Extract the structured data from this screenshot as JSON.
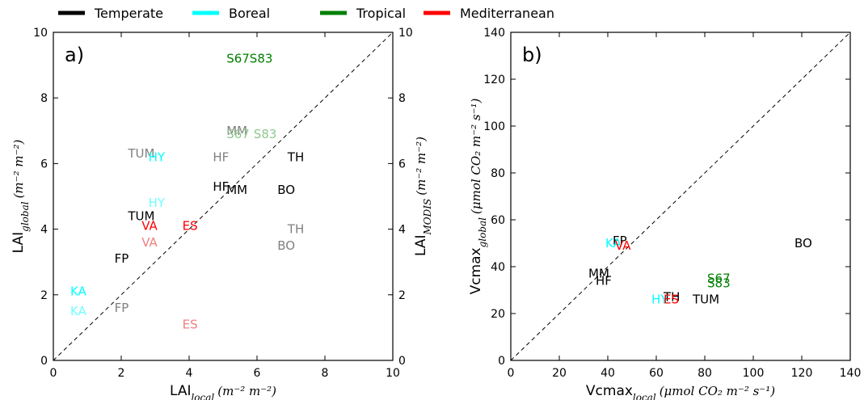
{
  "legend": [
    {
      "label": "Temperate",
      "color": "#000000"
    },
    {
      "label": "Boreal",
      "color": "#00ffff"
    },
    {
      "label": "Tropical",
      "color": "#008000"
    },
    {
      "label": "Mediterranean",
      "color": "#ff0000"
    }
  ],
  "chart_data": [
    {
      "type": "scatter",
      "panel_label": "a)",
      "xlabel": {
        "main": "LAI",
        "sub": "local",
        "unit": "(m⁻² m⁻²)"
      },
      "ylabel": {
        "main": "LAI",
        "sub": "global",
        "unit": "(m⁻² m⁻²)"
      },
      "y2label": {
        "main": "LAI",
        "sub": "MODIS",
        "unit": "(m⁻² m⁻²)"
      },
      "xlim": [
        0,
        10
      ],
      "ylim": [
        0,
        10
      ],
      "y2lim": [
        0,
        10
      ],
      "xticks": [
        "0",
        "2",
        "4",
        "6",
        "8",
        "10"
      ],
      "yticks": [
        "0",
        "2",
        "4",
        "6",
        "8",
        "10"
      ],
      "y2ticks": [
        "0",
        "2",
        "4",
        "6",
        "8",
        "10"
      ],
      "one_to_one_line": true,
      "points": [
        {
          "label": "S67S83",
          "x": 5.1,
          "y": 9.2,
          "color": "#008000"
        },
        {
          "label": "MM",
          "x": 5.1,
          "y": 7.0,
          "color": "#808080"
        },
        {
          "label": "S67",
          "x": 5.1,
          "y": 6.9,
          "color": "#90c890"
        },
        {
          "label": "S83",
          "x": 5.9,
          "y": 6.9,
          "color": "#90c890"
        },
        {
          "label": "TUM",
          "x": 2.2,
          "y": 6.3,
          "color": "#808080"
        },
        {
          "label": "HY",
          "x": 2.8,
          "y": 6.2,
          "color": "#00ffff"
        },
        {
          "label": "HF",
          "x": 4.7,
          "y": 6.2,
          "color": "#808080"
        },
        {
          "label": "TH",
          "x": 6.9,
          "y": 6.2,
          "color": "#000000"
        },
        {
          "label": "HF",
          "x": 4.7,
          "y": 5.3,
          "color": "#000000"
        },
        {
          "label": "MM",
          "x": 5.1,
          "y": 5.2,
          "color": "#000000"
        },
        {
          "label": "BO",
          "x": 6.6,
          "y": 5.2,
          "color": "#000000"
        },
        {
          "label": "HY",
          "x": 2.8,
          "y": 4.8,
          "color": "#70ffff"
        },
        {
          "label": "TUM",
          "x": 2.2,
          "y": 4.4,
          "color": "#000000"
        },
        {
          "label": "VA",
          "x": 2.6,
          "y": 4.1,
          "color": "#ff0000"
        },
        {
          "label": "ES",
          "x": 3.8,
          "y": 4.1,
          "color": "#ff0000"
        },
        {
          "label": "TH",
          "x": 6.9,
          "y": 4.0,
          "color": "#808080"
        },
        {
          "label": "VA",
          "x": 2.6,
          "y": 3.6,
          "color": "#f08080"
        },
        {
          "label": "BO",
          "x": 6.6,
          "y": 3.5,
          "color": "#808080"
        },
        {
          "label": "FP",
          "x": 1.8,
          "y": 3.1,
          "color": "#000000"
        },
        {
          "label": "KA",
          "x": 0.5,
          "y": 2.1,
          "color": "#00ffff"
        },
        {
          "label": "FP",
          "x": 1.8,
          "y": 1.6,
          "color": "#808080"
        },
        {
          "label": "KA",
          "x": 0.5,
          "y": 1.5,
          "color": "#70ffff"
        },
        {
          "label": "ES",
          "x": 3.8,
          "y": 1.1,
          "color": "#f08080"
        }
      ]
    },
    {
      "type": "scatter",
      "panel_label": "b)",
      "xlabel": {
        "main": "Vcmax",
        "sub": "local",
        "unit": "(μmol CO₂ m⁻² s⁻¹)"
      },
      "ylabel": {
        "main": "Vcmax",
        "sub": "global",
        "unit": "(μmol CO₂ m⁻² s⁻¹)"
      },
      "xlim": [
        0,
        140
      ],
      "ylim": [
        0,
        140
      ],
      "xticks": [
        "0",
        "20",
        "40",
        "60",
        "80",
        "100",
        "120",
        "140"
      ],
      "yticks": [
        "0",
        "20",
        "40",
        "60",
        "80",
        "100",
        "120",
        "140"
      ],
      "one_to_one_line": true,
      "points": [
        {
          "label": "FP",
          "x": 42,
          "y": 51,
          "color": "#000000"
        },
        {
          "label": "KA",
          "x": 39,
          "y": 50,
          "color": "#00ffff"
        },
        {
          "label": "VA",
          "x": 43,
          "y": 49,
          "color": "#ff0000"
        },
        {
          "label": "BO",
          "x": 117,
          "y": 50,
          "color": "#000000"
        },
        {
          "label": "MM",
          "x": 32,
          "y": 37,
          "color": "#000000"
        },
        {
          "label": "HF",
          "x": 35,
          "y": 34,
          "color": "#000000"
        },
        {
          "label": "S67",
          "x": 81,
          "y": 35,
          "color": "#008000"
        },
        {
          "label": "S83",
          "x": 81,
          "y": 33,
          "color": "#008000"
        },
        {
          "label": "TH",
          "x": 63,
          "y": 27,
          "color": "#000000"
        },
        {
          "label": "HY",
          "x": 58,
          "y": 26,
          "color": "#00ffff"
        },
        {
          "label": "ES",
          "x": 63,
          "y": 26,
          "color": "#ff0000"
        },
        {
          "label": "TUM",
          "x": 75,
          "y": 26,
          "color": "#000000"
        }
      ]
    }
  ]
}
